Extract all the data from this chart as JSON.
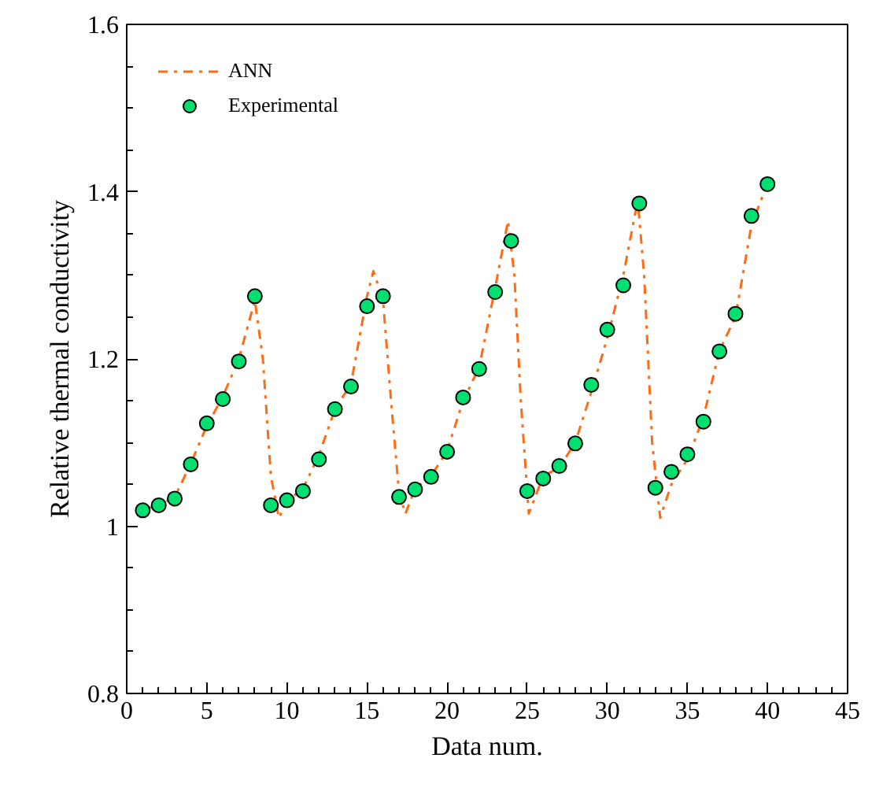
{
  "chart_data": {
    "type": "scatter",
    "xlabel": "Data num.",
    "ylabel": "Relative thermal conductivity",
    "xlim": [
      0,
      45
    ],
    "xticks": [
      0,
      5,
      10,
      15,
      20,
      25,
      30,
      35,
      40,
      45
    ],
    "ylim": [
      0.8,
      1.6
    ],
    "yticks": [
      0.8,
      1,
      1.2,
      1.4,
      1.6
    ],
    "grid": false,
    "legend": "top left",
    "series": [
      {
        "name": "ANN",
        "type": "line",
        "line_style": "dashdot",
        "color": "#ff6a13",
        "x": [
          1,
          2,
          3,
          4,
          5,
          6,
          7,
          8,
          8.5,
          9,
          9.5,
          10,
          11,
          12,
          13,
          14,
          15,
          15.4,
          16,
          16.5,
          17,
          17.4,
          18,
          19,
          20,
          21,
          22,
          23,
          23.8,
          24.2,
          24.6,
          25.1,
          26,
          27,
          28,
          29,
          30,
          31,
          31.9,
          32.3,
          32.8,
          33.3,
          34,
          35,
          36,
          37,
          38,
          39,
          40
        ],
        "values": [
          1.02,
          1.025,
          1.035,
          1.075,
          1.12,
          1.155,
          1.2,
          1.27,
          1.2,
          1.06,
          1.01,
          1.03,
          1.045,
          1.085,
          1.14,
          1.17,
          1.275,
          1.305,
          1.27,
          1.15,
          1.04,
          1.015,
          1.045,
          1.06,
          1.09,
          1.15,
          1.19,
          1.285,
          1.365,
          1.3,
          1.15,
          1.015,
          1.06,
          1.07,
          1.1,
          1.16,
          1.225,
          1.3,
          1.39,
          1.3,
          1.1,
          1.01,
          1.05,
          1.08,
          1.13,
          1.21,
          1.25,
          1.36,
          1.41
        ]
      },
      {
        "name": "Experimental",
        "marker": "circle",
        "color": "#00e070",
        "x": [
          1,
          2,
          3,
          4,
          5,
          6,
          7,
          8,
          9,
          10,
          11,
          12,
          13,
          14,
          15,
          16,
          17,
          18,
          19,
          20,
          21,
          22,
          23,
          24,
          25,
          26,
          27,
          28,
          29,
          30,
          31,
          32,
          33,
          34,
          35,
          36,
          37,
          38,
          39,
          40
        ],
        "values": [
          1.019,
          1.025,
          1.033,
          1.074,
          1.123,
          1.152,
          1.197,
          1.275,
          1.025,
          1.031,
          1.042,
          1.08,
          1.14,
          1.167,
          1.263,
          1.275,
          1.035,
          1.044,
          1.059,
          1.089,
          1.154,
          1.188,
          1.28,
          1.341,
          1.042,
          1.057,
          1.072,
          1.099,
          1.169,
          1.235,
          1.288,
          1.386,
          1.046,
          1.065,
          1.086,
          1.125,
          1.209,
          1.254,
          1.371,
          1.409
        ]
      }
    ]
  }
}
